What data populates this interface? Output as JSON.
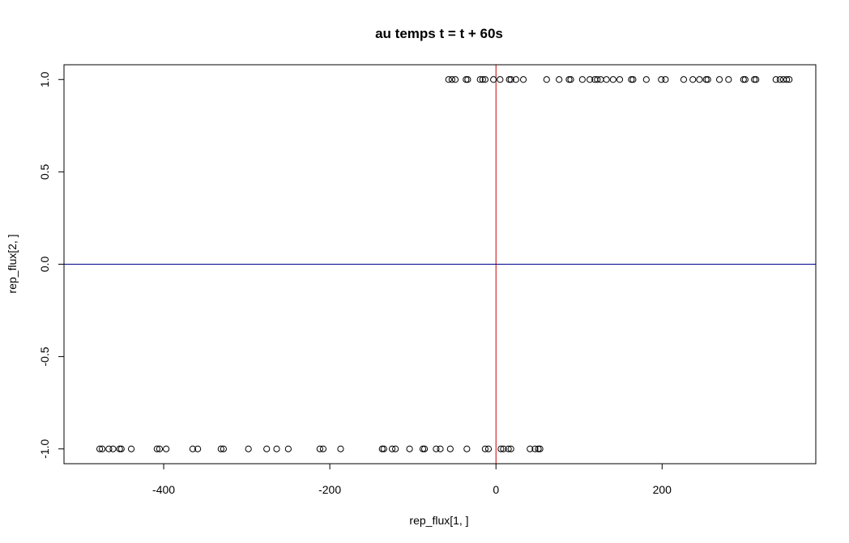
{
  "chart_data": {
    "type": "scatter",
    "title": "au temps t = t + 60s",
    "xlabel": "rep_flux[1, ]",
    "ylabel": "rep_flux[2, ]",
    "xlim": [
      -520,
      385
    ],
    "ylim": [
      -1.08,
      1.08
    ],
    "x_ticks": [
      -400,
      -200,
      0,
      200
    ],
    "x_tick_labels": [
      "-400",
      "-200",
      "0",
      "200"
    ],
    "y_ticks": [
      -1.0,
      -0.5,
      0.0,
      0.5,
      1.0
    ],
    "y_tick_labels": [
      "-1.0",
      "-0.5",
      "0.0",
      "0.5",
      "1.0"
    ],
    "grid": false,
    "reference_lines": [
      {
        "orientation": "vertical",
        "value": 0,
        "color": "#cc0000"
      },
      {
        "orientation": "horizontal",
        "value": 0,
        "color": "#00008b"
      }
    ],
    "series": [
      {
        "marker": "open-circle",
        "color": "#000000",
        "points": [
          {
            "x": -57,
            "y": 1
          },
          {
            "x": -53,
            "y": 1
          },
          {
            "x": -49,
            "y": 1
          },
          {
            "x": -36,
            "y": 1
          },
          {
            "x": -34,
            "y": 1
          },
          {
            "x": -19,
            "y": 1
          },
          {
            "x": -16,
            "y": 1
          },
          {
            "x": -13,
            "y": 1
          },
          {
            "x": -3,
            "y": 1
          },
          {
            "x": 5,
            "y": 1
          },
          {
            "x": 16,
            "y": 1
          },
          {
            "x": 18,
            "y": 1
          },
          {
            "x": 24,
            "y": 1
          },
          {
            "x": 33,
            "y": 1
          },
          {
            "x": 61,
            "y": 1
          },
          {
            "x": 76,
            "y": 1
          },
          {
            "x": 88,
            "y": 1
          },
          {
            "x": 90,
            "y": 1
          },
          {
            "x": 104,
            "y": 1
          },
          {
            "x": 113,
            "y": 1
          },
          {
            "x": 119,
            "y": 1
          },
          {
            "x": 122,
            "y": 1
          },
          {
            "x": 126,
            "y": 1
          },
          {
            "x": 133,
            "y": 1
          },
          {
            "x": 141,
            "y": 1
          },
          {
            "x": 149,
            "y": 1
          },
          {
            "x": 163,
            "y": 1
          },
          {
            "x": 165,
            "y": 1
          },
          {
            "x": 181,
            "y": 1
          },
          {
            "x": 199,
            "y": 1
          },
          {
            "x": 204,
            "y": 1
          },
          {
            "x": 226,
            "y": 1
          },
          {
            "x": 237,
            "y": 1
          },
          {
            "x": 245,
            "y": 1
          },
          {
            "x": 253,
            "y": 1
          },
          {
            "x": 255,
            "y": 1
          },
          {
            "x": 269,
            "y": 1
          },
          {
            "x": 280,
            "y": 1
          },
          {
            "x": 298,
            "y": 1
          },
          {
            "x": 300,
            "y": 1
          },
          {
            "x": 311,
            "y": 1
          },
          {
            "x": 313,
            "y": 1
          },
          {
            "x": 337,
            "y": 1
          },
          {
            "x": 342,
            "y": 1
          },
          {
            "x": 346,
            "y": 1
          },
          {
            "x": 350,
            "y": 1
          },
          {
            "x": 353,
            "y": 1
          },
          {
            "x": -477,
            "y": -1
          },
          {
            "x": -474,
            "y": -1
          },
          {
            "x": -466,
            "y": -1
          },
          {
            "x": -461,
            "y": -1
          },
          {
            "x": -453,
            "y": -1
          },
          {
            "x": -451,
            "y": -1
          },
          {
            "x": -439,
            "y": -1
          },
          {
            "x": -408,
            "y": -1
          },
          {
            "x": -405,
            "y": -1
          },
          {
            "x": -397,
            "y": -1
          },
          {
            "x": -365,
            "y": -1
          },
          {
            "x": -359,
            "y": -1
          },
          {
            "x": -331,
            "y": -1
          },
          {
            "x": -328,
            "y": -1
          },
          {
            "x": -298,
            "y": -1
          },
          {
            "x": -276,
            "y": -1
          },
          {
            "x": -264,
            "y": -1
          },
          {
            "x": -250,
            "y": -1
          },
          {
            "x": -212,
            "y": -1
          },
          {
            "x": -208,
            "y": -1
          },
          {
            "x": -187,
            "y": -1
          },
          {
            "x": -137,
            "y": -1
          },
          {
            "x": -135,
            "y": -1
          },
          {
            "x": -125,
            "y": -1
          },
          {
            "x": -121,
            "y": -1
          },
          {
            "x": -104,
            "y": -1
          },
          {
            "x": -88,
            "y": -1
          },
          {
            "x": -86,
            "y": -1
          },
          {
            "x": -72,
            "y": -1
          },
          {
            "x": -67,
            "y": -1
          },
          {
            "x": -55,
            "y": -1
          },
          {
            "x": -35,
            "y": -1
          },
          {
            "x": -13,
            "y": -1
          },
          {
            "x": -9,
            "y": -1
          },
          {
            "x": 6,
            "y": -1
          },
          {
            "x": 9,
            "y": -1
          },
          {
            "x": 15,
            "y": -1
          },
          {
            "x": 18,
            "y": -1
          },
          {
            "x": 41,
            "y": -1
          },
          {
            "x": 47,
            "y": -1
          },
          {
            "x": 51,
            "y": -1
          },
          {
            "x": 53,
            "y": -1
          }
        ]
      }
    ]
  }
}
